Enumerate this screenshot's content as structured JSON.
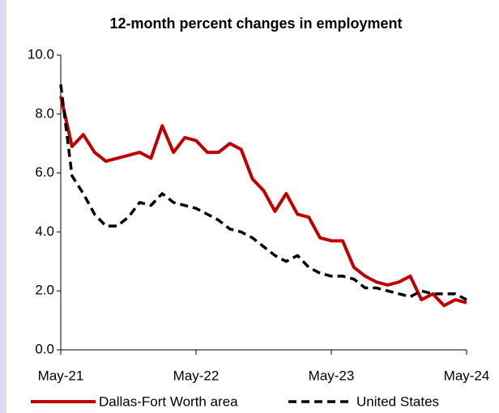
{
  "chart_data": {
    "type": "line",
    "title": "12-month percent changes in employment",
    "categories": [
      "May-21",
      null,
      null,
      null,
      null,
      null,
      null,
      null,
      null,
      null,
      null,
      null,
      "May-22",
      null,
      null,
      null,
      null,
      null,
      null,
      null,
      null,
      null,
      null,
      null,
      "May-23",
      null,
      null,
      null,
      null,
      null,
      null,
      null,
      null,
      null,
      null,
      null,
      "May-24"
    ],
    "series": [
      {
        "name": "Dallas-Fort Worth area",
        "color": "#c00000",
        "dash": false,
        "values": [
          8.6,
          6.9,
          7.3,
          6.7,
          6.4,
          6.5,
          6.6,
          6.7,
          6.5,
          7.6,
          6.7,
          7.2,
          7.1,
          6.7,
          6.7,
          7.0,
          6.8,
          5.8,
          5.4,
          4.7,
          5.3,
          4.6,
          4.5,
          3.8,
          3.7,
          3.7,
          2.8,
          2.5,
          2.3,
          2.2,
          2.3,
          2.5,
          1.7,
          1.9,
          1.5,
          1.7,
          1.6
        ]
      },
      {
        "name": "United States",
        "color": "#000000",
        "dash": true,
        "values": [
          9.0,
          5.9,
          5.3,
          4.6,
          4.2,
          4.2,
          4.5,
          5.0,
          4.9,
          5.3,
          5.0,
          4.9,
          4.8,
          4.6,
          4.4,
          4.1,
          4.0,
          3.8,
          3.5,
          3.2,
          3.0,
          3.2,
          2.8,
          2.6,
          2.5,
          2.5,
          2.4,
          2.1,
          2.1,
          2.0,
          1.9,
          1.8,
          2.0,
          1.9,
          1.9,
          1.9,
          1.7
        ]
      }
    ],
    "ylim": [
      0,
      10
    ],
    "yticks": [
      {
        "value": 0,
        "label": "0.0"
      },
      {
        "value": 2,
        "label": "2.0"
      },
      {
        "value": 4,
        "label": "4.0"
      },
      {
        "value": 6,
        "label": "6.0"
      },
      {
        "value": 8,
        "label": "8.0"
      },
      {
        "value": 10,
        "label": "10.0"
      }
    ],
    "grid": false
  }
}
